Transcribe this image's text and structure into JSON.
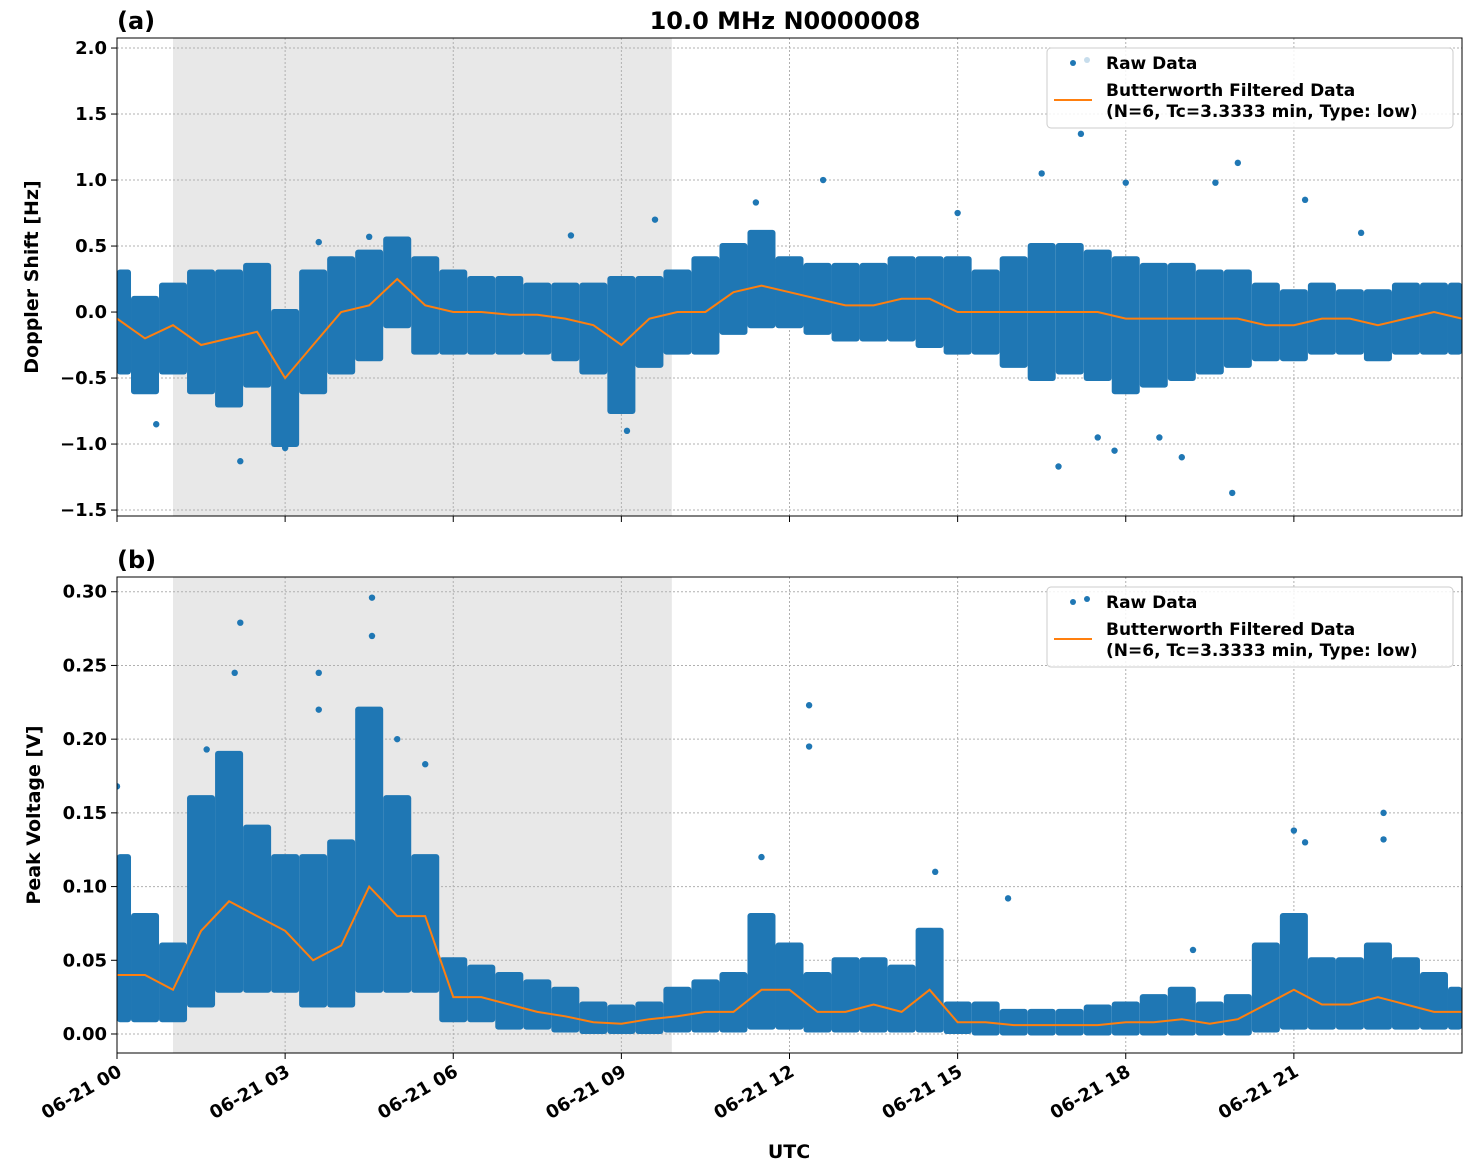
{
  "title": "10.0 MHz N0000008",
  "colors": {
    "raw": "#1f77b4",
    "filtered": "#ff7f0e",
    "shade": "#e8e8e8"
  },
  "legend": {
    "raw": "Raw Data",
    "filtered_line1": "Butterworth Filtered Data",
    "filtered_line2": "(N=6, Tc=3.3333 min, Type: low)",
    "placement": "upper-right"
  },
  "chart_data": [
    {
      "type": "scatter",
      "panel_label": "(a)",
      "ylabel": "Doppler Shift [Hz]",
      "xlabel": "",
      "x_unit": "hours UTC on 06-21",
      "xlim": [
        0,
        24
      ],
      "ylim": [
        -1.545,
        2.076
      ],
      "xticks": [
        0,
        3,
        6,
        9,
        12,
        15,
        18,
        21
      ],
      "xtick_labels": [
        "06-21 00",
        "06-21 03",
        "06-21 06",
        "06-21 09",
        "06-21 12",
        "06-21 15",
        "06-21 18",
        "06-21 21"
      ],
      "yticks": [
        -1.5,
        -1.0,
        -0.5,
        0.0,
        0.5,
        1.0,
        1.5,
        2.0
      ],
      "ytick_labels": [
        "−1.5",
        "−1.0",
        "−0.5",
        "0.0",
        "0.5",
        "1.0",
        "1.5",
        "2.0"
      ],
      "grid": true,
      "shaded_x": [
        1.0,
        9.9
      ],
      "x": [
        0,
        0.5,
        1,
        1.5,
        2,
        2.5,
        3,
        3.5,
        4,
        4.5,
        5,
        5.5,
        6,
        6.5,
        7,
        7.5,
        8,
        8.5,
        9,
        9.5,
        10,
        10.5,
        11,
        11.5,
        12,
        12.5,
        13,
        13.5,
        14,
        14.5,
        15,
        15.5,
        16,
        16.5,
        17,
        17.5,
        18,
        18.5,
        19,
        19.5,
        20,
        20.5,
        21,
        21.5,
        22,
        22.5,
        23,
        23.5,
        24
      ],
      "filtered": [
        -0.05,
        -0.2,
        -0.1,
        -0.25,
        -0.2,
        -0.15,
        -0.5,
        -0.25,
        0.0,
        0.05,
        0.25,
        0.05,
        0.0,
        0.0,
        -0.02,
        -0.02,
        -0.05,
        -0.1,
        -0.25,
        -0.05,
        0.0,
        0.0,
        0.15,
        0.2,
        0.15,
        0.1,
        0.05,
        0.05,
        0.1,
        0.1,
        0.0,
        0.0,
        0.0,
        0.0,
        0.0,
        0.0,
        -0.05,
        -0.05,
        -0.05,
        -0.05,
        -0.05,
        -0.1,
        -0.1,
        -0.05,
        -0.05,
        -0.1,
        -0.05,
        0.0,
        -0.05
      ],
      "raw_low": [
        -0.45,
        -0.6,
        -0.45,
        -0.6,
        -0.7,
        -0.55,
        -1.0,
        -0.6,
        -0.45,
        -0.35,
        -0.1,
        -0.3,
        -0.3,
        -0.3,
        -0.3,
        -0.3,
        -0.35,
        -0.45,
        -0.75,
        -0.4,
        -0.3,
        -0.3,
        -0.15,
        -0.1,
        -0.1,
        -0.15,
        -0.2,
        -0.2,
        -0.2,
        -0.25,
        -0.3,
        -0.3,
        -0.4,
        -0.5,
        -0.45,
        -0.5,
        -0.6,
        -0.55,
        -0.5,
        -0.45,
        -0.4,
        -0.35,
        -0.35,
        -0.3,
        -0.3,
        -0.35,
        -0.3,
        -0.3,
        -0.3
      ],
      "raw_high": [
        0.3,
        0.1,
        0.2,
        0.3,
        0.3,
        0.35,
        0.0,
        0.3,
        0.4,
        0.45,
        0.55,
        0.4,
        0.3,
        0.25,
        0.25,
        0.2,
        0.2,
        0.2,
        0.25,
        0.25,
        0.3,
        0.4,
        0.5,
        0.6,
        0.4,
        0.35,
        0.35,
        0.35,
        0.4,
        0.4,
        0.4,
        0.3,
        0.4,
        0.5,
        0.5,
        0.45,
        0.4,
        0.35,
        0.35,
        0.3,
        0.3,
        0.2,
        0.15,
        0.2,
        0.15,
        0.15,
        0.2,
        0.2,
        0.2
      ],
      "raw_outliers": [
        [
          0.7,
          -0.85
        ],
        [
          2.2,
          -1.13
        ],
        [
          3.0,
          -1.03
        ],
        [
          3.6,
          0.53
        ],
        [
          4.5,
          0.57
        ],
        [
          8.1,
          0.58
        ],
        [
          9.1,
          -0.9
        ],
        [
          9.6,
          0.7
        ],
        [
          11.4,
          0.83
        ],
        [
          12.6,
          1.0
        ],
        [
          15.0,
          0.75
        ],
        [
          16.5,
          1.05
        ],
        [
          16.8,
          -1.17
        ],
        [
          17.2,
          1.35
        ],
        [
          17.5,
          -0.95
        ],
        [
          18.0,
          0.98
        ],
        [
          19.0,
          -1.1
        ],
        [
          19.6,
          0.98
        ],
        [
          19.9,
          -1.37
        ],
        [
          20.0,
          1.13
        ],
        [
          21.2,
          0.85
        ],
        [
          22.2,
          0.6
        ],
        [
          17.8,
          -1.05
        ],
        [
          18.6,
          -0.95
        ]
      ]
    },
    {
      "type": "scatter",
      "panel_label": "(b)",
      "ylabel": "Peak Voltage [V]",
      "xlabel": "UTC",
      "x_unit": "hours UTC on 06-21",
      "xlim": [
        0,
        24
      ],
      "ylim": [
        -0.0129,
        0.31
      ],
      "xticks": [
        0,
        3,
        6,
        9,
        12,
        15,
        18,
        21
      ],
      "xtick_labels": [
        "06-21 00",
        "06-21 03",
        "06-21 06",
        "06-21 09",
        "06-21 12",
        "06-21 15",
        "06-21 18",
        "06-21 21"
      ],
      "yticks": [
        0.0,
        0.05,
        0.1,
        0.15,
        0.2,
        0.25,
        0.3
      ],
      "ytick_labels": [
        "0.00",
        "0.05",
        "0.10",
        "0.15",
        "0.20",
        "0.25",
        "0.30"
      ],
      "grid": true,
      "shaded_x": [
        1.0,
        9.9
      ],
      "x": [
        0,
        0.5,
        1,
        1.5,
        2,
        2.5,
        3,
        3.5,
        4,
        4.5,
        5,
        5.5,
        6,
        6.5,
        7,
        7.5,
        8,
        8.5,
        9,
        9.5,
        10,
        10.5,
        11,
        11.5,
        12,
        12.5,
        13,
        13.5,
        14,
        14.5,
        15,
        15.5,
        16,
        16.5,
        17,
        17.5,
        18,
        18.5,
        19,
        19.5,
        20,
        20.5,
        21,
        21.5,
        22,
        22.5,
        23,
        23.5,
        24
      ],
      "filtered": [
        0.04,
        0.04,
        0.03,
        0.07,
        0.09,
        0.08,
        0.07,
        0.05,
        0.06,
        0.1,
        0.08,
        0.08,
        0.025,
        0.025,
        0.02,
        0.015,
        0.012,
        0.008,
        0.007,
        0.01,
        0.012,
        0.015,
        0.015,
        0.03,
        0.03,
        0.015,
        0.015,
        0.02,
        0.015,
        0.03,
        0.008,
        0.008,
        0.006,
        0.006,
        0.006,
        0.006,
        0.008,
        0.008,
        0.01,
        0.007,
        0.01,
        0.02,
        0.03,
        0.02,
        0.02,
        0.025,
        0.02,
        0.015,
        0.015
      ],
      "raw_low": [
        0.01,
        0.01,
        0.01,
        0.02,
        0.03,
        0.03,
        0.03,
        0.02,
        0.02,
        0.03,
        0.03,
        0.03,
        0.01,
        0.01,
        0.005,
        0.005,
        0.003,
        0.002,
        0.002,
        0.002,
        0.003,
        0.003,
        0.003,
        0.005,
        0.005,
        0.003,
        0.003,
        0.003,
        0.003,
        0.003,
        0.002,
        0.001,
        0.001,
        0.001,
        0.001,
        0.001,
        0.001,
        0.001,
        0.001,
        0.001,
        0.001,
        0.003,
        0.005,
        0.005,
        0.005,
        0.005,
        0.005,
        0.005,
        0.005
      ],
      "raw_high": [
        0.12,
        0.08,
        0.06,
        0.16,
        0.19,
        0.14,
        0.12,
        0.12,
        0.13,
        0.22,
        0.16,
        0.12,
        0.05,
        0.045,
        0.04,
        0.035,
        0.03,
        0.02,
        0.018,
        0.02,
        0.03,
        0.035,
        0.04,
        0.08,
        0.06,
        0.04,
        0.05,
        0.05,
        0.045,
        0.07,
        0.02,
        0.02,
        0.015,
        0.015,
        0.015,
        0.018,
        0.02,
        0.025,
        0.03,
        0.02,
        0.025,
        0.06,
        0.08,
        0.05,
        0.05,
        0.06,
        0.05,
        0.04,
        0.03
      ],
      "raw_outliers": [
        [
          0.0,
          0.168
        ],
        [
          1.6,
          0.193
        ],
        [
          2.2,
          0.279
        ],
        [
          2.1,
          0.245
        ],
        [
          3.6,
          0.245
        ],
        [
          3.6,
          0.22
        ],
        [
          4.55,
          0.296
        ],
        [
          4.55,
          0.27
        ],
        [
          5.0,
          0.2
        ],
        [
          5.5,
          0.183
        ],
        [
          11.5,
          0.12
        ],
        [
          12.35,
          0.223
        ],
        [
          12.35,
          0.195
        ],
        [
          14.6,
          0.11
        ],
        [
          15.9,
          0.092
        ],
        [
          19.2,
          0.057
        ],
        [
          21.0,
          0.138
        ],
        [
          21.2,
          0.13
        ],
        [
          22.6,
          0.15
        ],
        [
          22.6,
          0.132
        ]
      ]
    }
  ]
}
